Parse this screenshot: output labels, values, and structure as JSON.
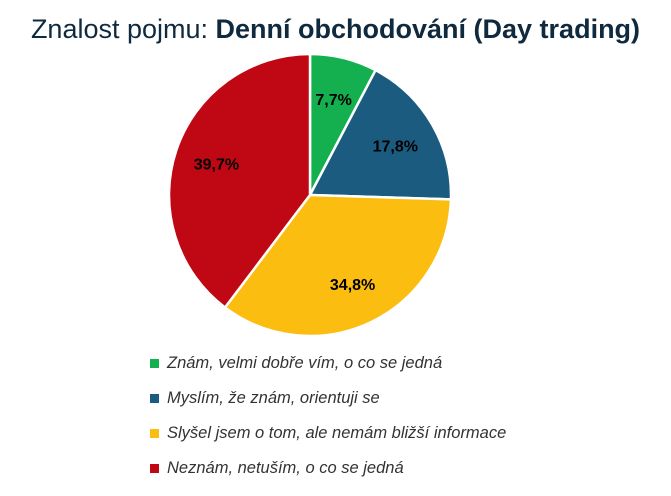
{
  "chart_data": {
    "type": "pie",
    "title_prefix": "Znalost pojmu: ",
    "title_bold": "Denní obchodování (Day trading)",
    "slices": [
      {
        "label": "Znám, velmi dobře vím, o co se jedná",
        "value": 7.7,
        "value_label": "7,7%",
        "color": "#14b04f"
      },
      {
        "label": "Myslím, že znám, orientuji se",
        "value": 17.8,
        "value_label": "17,8%",
        "color": "#1b5b80"
      },
      {
        "label": "Slyšel jsem o tom, ale nemám bližší informace",
        "value": 34.8,
        "value_label": "34,8%",
        "color": "#fbbd10"
      },
      {
        "label": "Neznám, netuším, o co se jedná",
        "value": 39.7,
        "value_label": "39,7%",
        "color": "#c00714"
      }
    ],
    "legend_position": "bottom",
    "data_label_color": "#000000"
  }
}
